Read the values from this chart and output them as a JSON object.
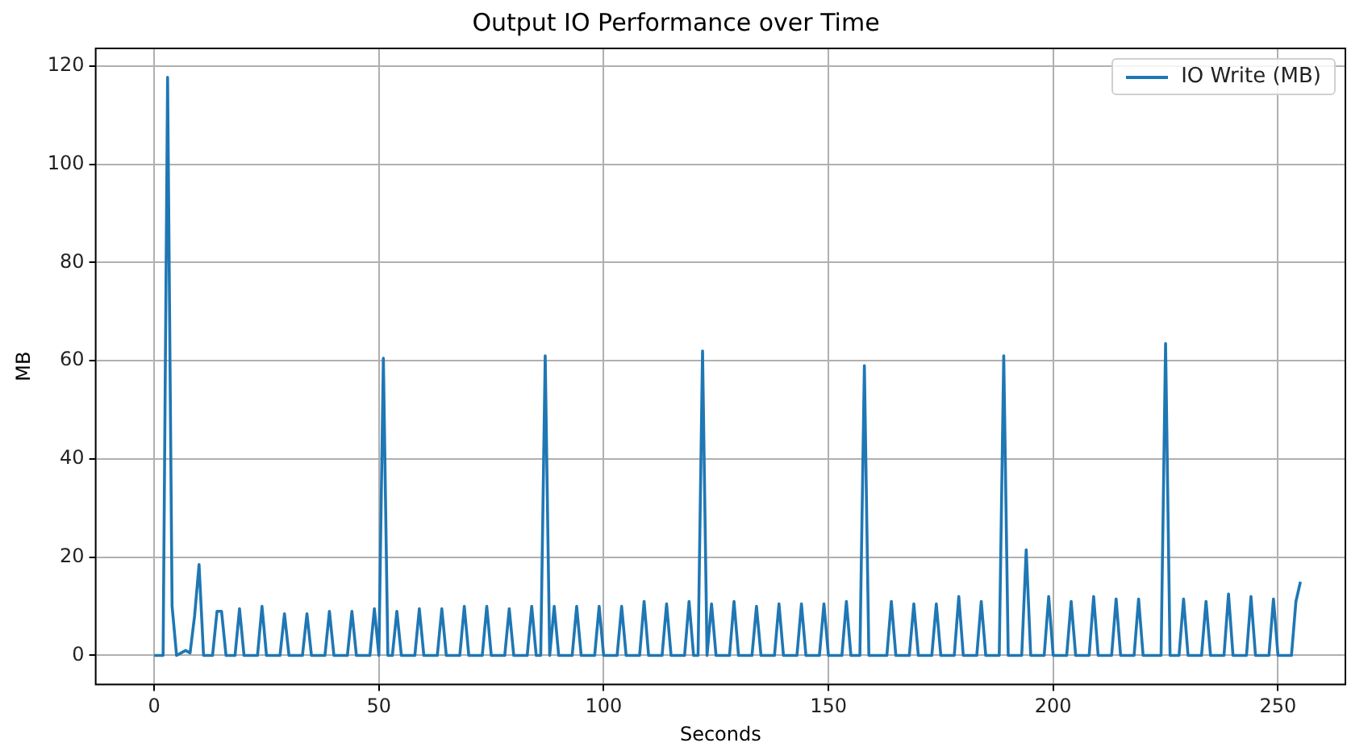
{
  "chart_data": {
    "type": "line",
    "title": "Output IO Performance over Time",
    "xlabel": "Seconds",
    "ylabel": "MB",
    "xlim": [
      -13,
      265
    ],
    "xticks": [
      0,
      50,
      100,
      150,
      200,
      250
    ],
    "ylim": [
      -5.9,
      123.6
    ],
    "yticks": [
      0,
      20,
      40,
      60,
      80,
      100,
      120
    ],
    "grid": true,
    "legend": "top right",
    "marker": "none",
    "line_style": "solid",
    "series": [
      {
        "name": "IO Write (MB)",
        "color": "#1f77b4",
        "x": [
          0,
          2,
          3,
          4,
          5,
          6,
          7,
          8,
          9,
          10,
          11,
          13,
          14,
          15,
          16,
          18,
          19,
          20,
          23,
          24,
          25,
          28,
          29,
          30,
          33,
          34,
          35,
          38,
          39,
          40,
          43,
          44,
          45,
          48,
          49,
          50,
          51,
          52,
          53,
          54,
          55,
          58,
          59,
          60,
          63,
          64,
          65,
          68,
          69,
          70,
          73,
          74,
          75,
          78,
          79,
          80,
          83,
          84,
          85,
          86,
          87,
          88,
          89,
          90,
          93,
          94,
          95,
          98,
          99,
          100,
          103,
          104,
          105,
          108,
          109,
          110,
          113,
          114,
          115,
          118,
          119,
          120,
          121,
          122,
          123,
          124,
          125,
          128,
          129,
          130,
          133,
          134,
          135,
          138,
          139,
          140,
          143,
          144,
          145,
          148,
          149,
          150,
          153,
          154,
          155,
          157,
          158,
          159,
          163,
          164,
          165,
          168,
          169,
          170,
          173,
          174,
          175,
          178,
          179,
          180,
          183,
          184,
          185,
          188,
          189,
          190,
          193,
          194,
          195,
          198,
          199,
          200,
          203,
          204,
          205,
          208,
          209,
          210,
          213,
          214,
          215,
          218,
          219,
          220,
          224,
          225,
          226,
          228,
          229,
          230,
          233,
          234,
          235,
          238,
          239,
          240,
          243,
          244,
          245,
          248,
          249,
          250,
          253,
          254,
          255
        ],
        "values": [
          0,
          0,
          117.7,
          10,
          0,
          0.5,
          1,
          0.5,
          8,
          18.5,
          0,
          0,
          9,
          9,
          0,
          0,
          9.5,
          0,
          0,
          10,
          0,
          0,
          8.5,
          0,
          0,
          8.5,
          0,
          0,
          9,
          0,
          0,
          9,
          0,
          0,
          9.5,
          0,
          60.5,
          0,
          0,
          9,
          0,
          0,
          9.5,
          0,
          0,
          9.5,
          0,
          0,
          10,
          0,
          0,
          10,
          0,
          0,
          9.5,
          0,
          0,
          10,
          0,
          0,
          61,
          0,
          10,
          0,
          0,
          10,
          0,
          0,
          10,
          0,
          0,
          10,
          0,
          0,
          11,
          0,
          0,
          10.5,
          0,
          0,
          11,
          0,
          0,
          62,
          0,
          10.5,
          0,
          0,
          11,
          0,
          0,
          10,
          0,
          0,
          10.5,
          0,
          0,
          10.5,
          0,
          0,
          10.5,
          0,
          0,
          11,
          0,
          0,
          59,
          0,
          0,
          11,
          0,
          0,
          10.5,
          0,
          0,
          10.5,
          0,
          0,
          12,
          0,
          0,
          11,
          0,
          0,
          61,
          0,
          0,
          21.5,
          0,
          0,
          12,
          0,
          0,
          11,
          0,
          0,
          12,
          0,
          0,
          11.5,
          0,
          0,
          11.5,
          0,
          0,
          63.5,
          0,
          0,
          11.5,
          0,
          0,
          11,
          0,
          0,
          12.5,
          0,
          0,
          12,
          0,
          0,
          11.5,
          0,
          0,
          11,
          15
        ]
      }
    ]
  }
}
